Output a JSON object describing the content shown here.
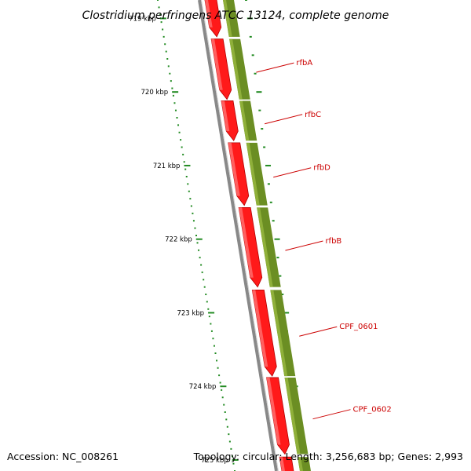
{
  "header": {
    "title": "Clostridium perfringens ATCC 13124, complete genome"
  },
  "footer": {
    "accession": "Accession: NC_008261",
    "summary": "Topology: circular; Length: 3,256,683 bp; Genes: 2,993"
  },
  "colors": {
    "cds": "#ff1a1a",
    "cds_shade": "#b30000",
    "gene": "#6b8e23",
    "backbone": "#888888",
    "tick": "#228b22",
    "label": "#cc0000"
  },
  "scale": {
    "start_bp": 718750,
    "end_bp": 725150,
    "ticks": [
      {
        "bp": 719000,
        "label": "719 kbp"
      },
      {
        "bp": 720000,
        "label": "720 kbp"
      },
      {
        "bp": 721000,
        "label": "721 kbp"
      },
      {
        "bp": 722000,
        "label": "722 kbp"
      },
      {
        "bp": 723000,
        "label": "723 kbp"
      },
      {
        "bp": 724000,
        "label": "724 kbp"
      },
      {
        "bp": 725000,
        "label": "725 kbp"
      }
    ]
  },
  "genes": [
    {
      "name": "",
      "start": 718700,
      "end": 719250
    },
    {
      "name": "rfbA",
      "start": 719280,
      "end": 720100
    },
    {
      "name": "rfbC",
      "start": 720120,
      "end": 720660
    },
    {
      "name": "rfbD",
      "start": 720690,
      "end": 721540
    },
    {
      "name": "rfbB",
      "start": 721570,
      "end": 722650
    },
    {
      "name": "CPF_0601",
      "start": 722690,
      "end": 723860
    },
    {
      "name": "CPF_0602",
      "start": 723880,
      "end": 724920
    },
    {
      "name": "",
      "start": 724960,
      "end": 725400
    }
  ]
}
